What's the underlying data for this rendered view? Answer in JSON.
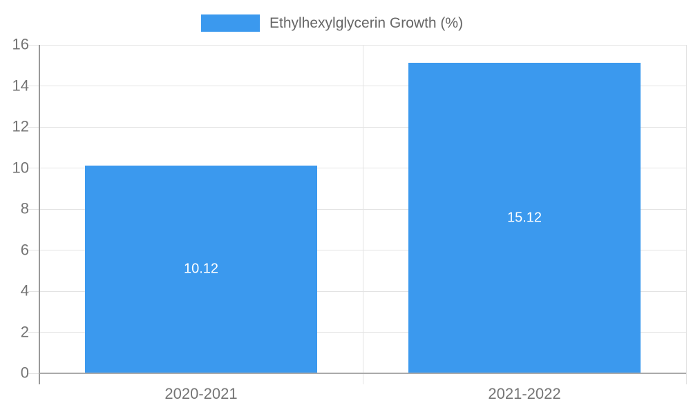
{
  "legend": {
    "label": "Ethylhexylglycerin Growth (%)"
  },
  "chart_data": {
    "type": "bar",
    "title": "",
    "categories": [
      "2020-2021",
      "2021-2022"
    ],
    "series": [
      {
        "name": "Ethylhexylglycerin Growth (%)",
        "values": [
          10.12,
          15.12
        ]
      }
    ],
    "value_labels": [
      "10.12",
      "15.12"
    ],
    "xlabel": "",
    "ylabel": "",
    "ylim": [
      0,
      16
    ],
    "ytick_step": 2,
    "ytick_labels": [
      "0",
      "2",
      "4",
      "6",
      "8",
      "10",
      "12",
      "14",
      "16"
    ],
    "grid": true,
    "legend_position": "top",
    "colors": {
      "bar": "#3B99EE",
      "grid": "#E3E3E3",
      "axis": "#999999",
      "baseline": "#AAAAAA",
      "tick_label": "#757575",
      "legend_text": "#666666",
      "bar_label": "#FFFFFF"
    }
  }
}
